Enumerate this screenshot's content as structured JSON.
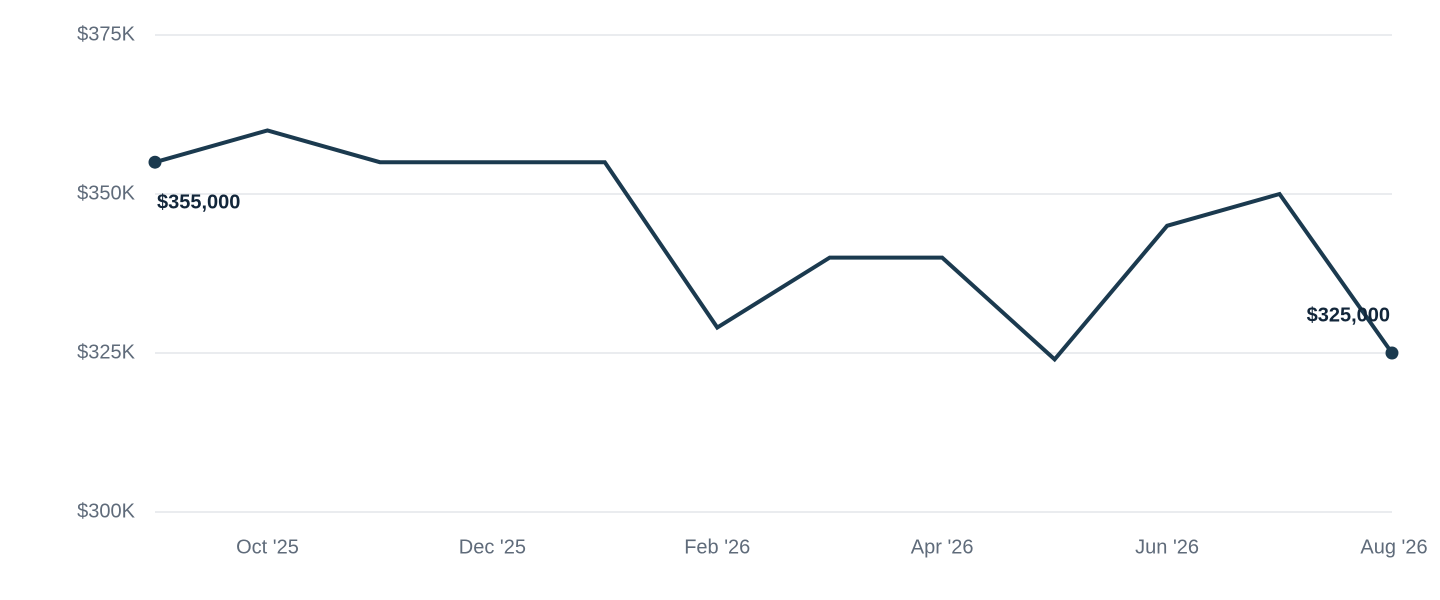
{
  "chart_data": {
    "type": "line",
    "categories": [
      null,
      "Oct '25",
      null,
      "Dec '25",
      null,
      "Feb '26",
      null,
      "Apr '26",
      null,
      "Jun '26",
      null,
      "Aug '26"
    ],
    "series": [
      {
        "color": "#1b3a4f",
        "values": [
          355000,
          360000,
          355000,
          355000,
          355000,
          329000,
          340000,
          340000,
          324000,
          345000,
          350000,
          325000
        ],
        "value_labels": [
          "$355,000",
          null,
          null,
          null,
          null,
          null,
          null,
          null,
          null,
          null,
          null,
          "$325,000"
        ]
      }
    ],
    "ylim": [
      300000,
      375000
    ],
    "yticks": [
      {
        "value": 300000,
        "label": "$300K"
      },
      {
        "value": 325000,
        "label": "$325K"
      },
      {
        "value": 350000,
        "label": "$350K"
      },
      {
        "value": 375000,
        "label": "$375K"
      }
    ],
    "grid": true
  }
}
